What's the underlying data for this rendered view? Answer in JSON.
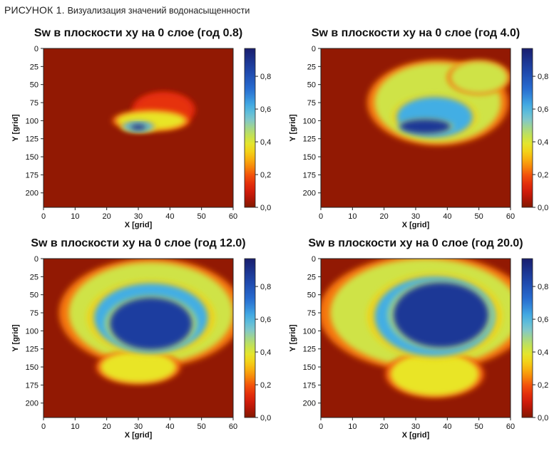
{
  "figure": {
    "label": "РИСУНОК 1.",
    "caption": "Визуализация значений водонасыщенности"
  },
  "chart_data": [
    {
      "type": "heatmap",
      "title": "Sw в плоскости xy на 0 слое (год 0.8)",
      "xlabel": "X [grid]",
      "ylabel": "Y [grid]",
      "xlim": [
        0,
        60
      ],
      "ylim": [
        220,
        0
      ],
      "xticks": [
        "0",
        "10",
        "20",
        "30",
        "40",
        "50",
        "60"
      ],
      "yticks": [
        "0",
        "25",
        "50",
        "75",
        "100",
        "125",
        "150",
        "175",
        "200"
      ],
      "colorbar": {
        "range": [
          0,
          0.97
        ],
        "ticks": [
          "0,0",
          "0,2",
          "0,4",
          "0,6",
          "0,8"
        ]
      },
      "blobs": [
        {
          "cx": 38,
          "cy": 85,
          "rx": 9,
          "ry": 23,
          "value": 0.15
        },
        {
          "cx": 34,
          "cy": 100,
          "rx": 11,
          "ry": 13,
          "value": 0.38
        },
        {
          "cx": 30,
          "cy": 108,
          "rx": 5,
          "ry": 7,
          "value": 0.58
        },
        {
          "cx": 30,
          "cy": 109,
          "rx": 2.5,
          "ry": 4,
          "value": 0.9
        }
      ]
    },
    {
      "type": "heatmap",
      "title": "Sw в плоскости xy на 0 слое (год 4.0)",
      "xlabel": "X [grid]",
      "ylabel": "Y [grid]",
      "xlim": [
        0,
        60
      ],
      "ylim": [
        220,
        0
      ],
      "xticks": [
        "0",
        "10",
        "20",
        "30",
        "40",
        "50",
        "60"
      ],
      "yticks": [
        "0",
        "25",
        "50",
        "75",
        "100",
        "125",
        "150",
        "175",
        "200"
      ],
      "colorbar": {
        "range": [
          0,
          0.97
        ],
        "ticks": [
          "0,0",
          "0,2",
          "0,4",
          "0,6",
          "0,8"
        ]
      },
      "blobs": [
        {
          "cx": 37,
          "cy": 75,
          "rx": 20,
          "ry": 55,
          "value": 0.42
        },
        {
          "cx": 50,
          "cy": 40,
          "rx": 9,
          "ry": 22,
          "value": 0.42
        },
        {
          "cx": 36,
          "cy": 95,
          "rx": 12,
          "ry": 28,
          "value": 0.62
        },
        {
          "cx": 33,
          "cy": 108,
          "rx": 8,
          "ry": 10,
          "value": 0.88
        }
      ]
    },
    {
      "type": "heatmap",
      "title": "Sw в плоскости xy на 0 слое (год 12.0)",
      "xlabel": "X [grid]",
      "ylabel": "Y [grid]",
      "xlim": [
        0,
        60
      ],
      "ylim": [
        220,
        0
      ],
      "xticks": [
        "0",
        "10",
        "20",
        "30",
        "40",
        "50",
        "60"
      ],
      "yticks": [
        "0",
        "25",
        "50",
        "75",
        "100",
        "125",
        "150",
        "175",
        "200"
      ],
      "colorbar": {
        "range": [
          0,
          0.97
        ],
        "ticks": [
          "0,0",
          "0,2",
          "0,4",
          "0,6",
          "0,8"
        ]
      },
      "blobs": [
        {
          "cx": 34,
          "cy": 75,
          "rx": 26,
          "ry": 70,
          "value": 0.42
        },
        {
          "cx": 30,
          "cy": 150,
          "rx": 12,
          "ry": 22,
          "value": 0.38
        },
        {
          "cx": 34,
          "cy": 82,
          "rx": 18,
          "ry": 48,
          "value": 0.62
        },
        {
          "cx": 34,
          "cy": 90,
          "rx": 13,
          "ry": 36,
          "value": 0.86
        }
      ]
    },
    {
      "type": "heatmap",
      "title": "Sw в плоскости xy на 0 слое (год 20.0)",
      "xlabel": "X [grid]",
      "ylabel": "Y [grid]",
      "xlim": [
        0,
        60
      ],
      "ylim": [
        220,
        0
      ],
      "xticks": [
        "0",
        "10",
        "20",
        "30",
        "40",
        "50",
        "60"
      ],
      "yticks": [
        "0",
        "25",
        "50",
        "75",
        "100",
        "125",
        "150",
        "175",
        "200"
      ],
      "colorbar": {
        "range": [
          0,
          0.97
        ],
        "ticks": [
          "0,0",
          "0,2",
          "0,4",
          "0,6",
          "0,8"
        ]
      },
      "blobs": [
        {
          "cx": 33,
          "cy": 75,
          "rx": 30,
          "ry": 75,
          "value": 0.42
        },
        {
          "cx": 36,
          "cy": 160,
          "rx": 14,
          "ry": 30,
          "value": 0.38
        },
        {
          "cx": 36,
          "cy": 80,
          "rx": 19,
          "ry": 55,
          "value": 0.62
        },
        {
          "cx": 38,
          "cy": 78,
          "rx": 15,
          "ry": 45,
          "value": 0.88
        }
      ]
    }
  ]
}
